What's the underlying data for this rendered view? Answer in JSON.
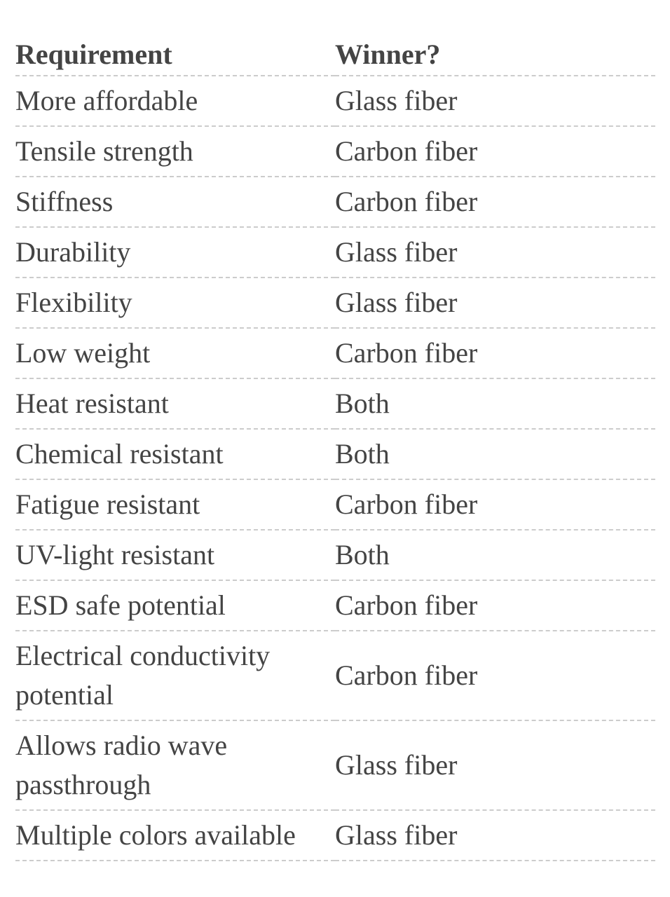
{
  "table": {
    "header": [
      "Requirement",
      "Winner?"
    ],
    "rows": [
      [
        "More affordable",
        "Glass fiber"
      ],
      [
        "Tensile strength",
        "Carbon fiber"
      ],
      [
        "Stiffness",
        "Carbon fiber"
      ],
      [
        "Durability",
        "Glass fiber"
      ],
      [
        "Flexibility",
        "Glass fiber"
      ],
      [
        "Low weight",
        "Carbon fiber"
      ],
      [
        "Heat resistant",
        "Both"
      ],
      [
        "Chemical resistant",
        "Both"
      ],
      [
        "Fatigue resistant",
        "Carbon fiber"
      ],
      [
        "UV-light resistant",
        "Both"
      ],
      [
        "ESD safe potential",
        "Carbon fiber"
      ],
      [
        "Electrical conductivity potential",
        "Carbon fiber"
      ],
      [
        "Allows radio wave passthrough",
        "Glass fiber"
      ],
      [
        "Multiple colors available",
        "Glass fiber"
      ]
    ]
  }
}
